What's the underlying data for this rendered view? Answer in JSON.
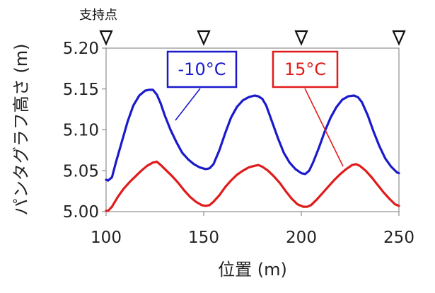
{
  "chart_data": {
    "type": "line",
    "xlabel": "位置 (m)",
    "ylabel": "パンタグラフ高さ (m)",
    "xlim": [
      100,
      250
    ],
    "ylim": [
      5.0,
      5.2
    ],
    "xticks": [
      100,
      150,
      200,
      250
    ],
    "xtick_labels": [
      "100",
      "150",
      "200",
      "250"
    ],
    "yticks": [
      5.0,
      5.05,
      5.1,
      5.15,
      5.2
    ],
    "ytick_labels": [
      "5.00",
      "5.05",
      "5.10",
      "5.15",
      "5.20"
    ],
    "grid": false,
    "support_points": {
      "label": "支持点",
      "positions": [
        100,
        150,
        200,
        250
      ]
    },
    "series": [
      {
        "name": "-10°C",
        "color": "#1a1acc",
        "x": [
          100,
          101,
          103,
          105,
          108,
          111,
          114,
          117,
          120,
          122,
          124,
          126,
          128,
          130,
          133,
          136,
          139,
          142,
          145,
          148,
          151,
          153,
          155,
          158,
          161,
          164,
          167,
          170,
          173,
          176,
          178,
          180,
          182,
          185,
          188,
          191,
          194,
          197,
          200,
          202,
          204,
          206,
          209,
          212,
          215,
          218,
          221,
          224,
          227,
          229,
          231,
          234,
          237,
          240,
          243,
          246,
          249,
          250
        ],
        "y": [
          5.039,
          5.038,
          5.042,
          5.06,
          5.085,
          5.11,
          5.13,
          5.142,
          5.148,
          5.149,
          5.149,
          5.143,
          5.132,
          5.118,
          5.1,
          5.085,
          5.072,
          5.064,
          5.058,
          5.054,
          5.052,
          5.053,
          5.058,
          5.075,
          5.096,
          5.115,
          5.128,
          5.136,
          5.14,
          5.142,
          5.141,
          5.138,
          5.13,
          5.11,
          5.09,
          5.072,
          5.06,
          5.052,
          5.047,
          5.046,
          5.05,
          5.06,
          5.078,
          5.098,
          5.115,
          5.128,
          5.137,
          5.141,
          5.142,
          5.14,
          5.134,
          5.118,
          5.098,
          5.08,
          5.065,
          5.055,
          5.048,
          5.047
        ]
      },
      {
        "name": "15°C",
        "color": "#e01b1b",
        "x": [
          100,
          101,
          103,
          106,
          109,
          112,
          115,
          118,
          121,
          124,
          126,
          128,
          131,
          134,
          137,
          140,
          143,
          146,
          149,
          151,
          153,
          155,
          158,
          161,
          164,
          167,
          170,
          173,
          176,
          178,
          180,
          183,
          186,
          189,
          192,
          195,
          198,
          201,
          203,
          205,
          208,
          211,
          214,
          217,
          220,
          223,
          226,
          228,
          230,
          233,
          236,
          239,
          242,
          245,
          248,
          250
        ],
        "y": [
          5.001,
          5.001,
          5.006,
          5.018,
          5.028,
          5.036,
          5.043,
          5.05,
          5.056,
          5.06,
          5.061,
          5.057,
          5.05,
          5.043,
          5.035,
          5.026,
          5.018,
          5.012,
          5.008,
          5.007,
          5.008,
          5.012,
          5.02,
          5.03,
          5.038,
          5.045,
          5.05,
          5.054,
          5.056,
          5.057,
          5.055,
          5.05,
          5.043,
          5.035,
          5.025,
          5.016,
          5.009,
          5.006,
          5.006,
          5.008,
          5.015,
          5.023,
          5.031,
          5.039,
          5.046,
          5.052,
          5.057,
          5.058,
          5.056,
          5.05,
          5.042,
          5.033,
          5.024,
          5.016,
          5.009,
          5.007
        ]
      }
    ]
  }
}
